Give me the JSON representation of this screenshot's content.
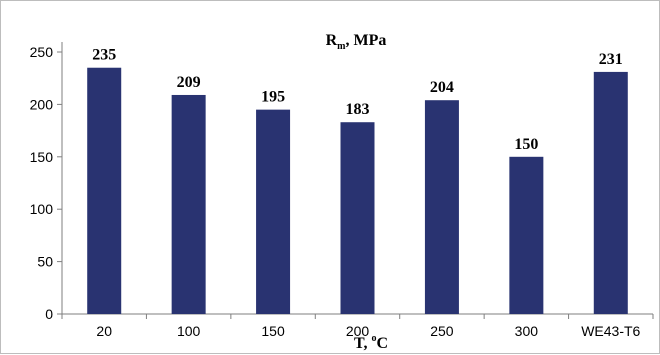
{
  "chart_data": {
    "type": "bar",
    "title": "R",
    "title_subscript": "m",
    "title_suffix": ", MPa",
    "xlabel": "T, ",
    "xlabel_superscript": "o",
    "xlabel_suffix": "C",
    "ylabel": "",
    "categories": [
      "20",
      "100",
      "150",
      "200",
      "250",
      "300",
      "WE43-T6"
    ],
    "series": [
      {
        "values": [
          235,
          209,
          195,
          183,
          204,
          150,
          231
        ],
        "color": "#293371"
      }
    ],
    "ylim": [
      0,
      250
    ],
    "yticks": [
      0,
      50,
      100,
      150,
      200,
      250
    ],
    "grid": false,
    "legend": "none"
  }
}
